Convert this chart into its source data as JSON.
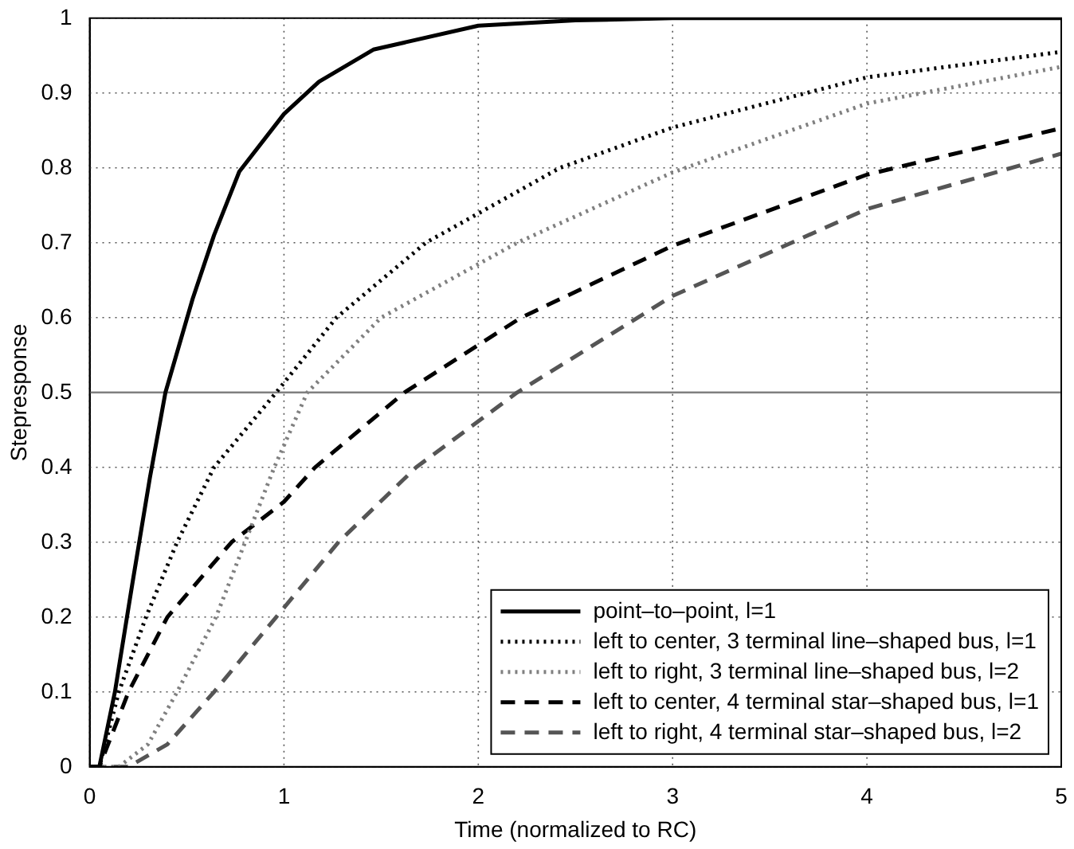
{
  "chart_data": {
    "type": "line",
    "xlabel": "Time (normalized to RC)",
    "ylabel": "Stepresponse",
    "xlim": [
      0,
      5
    ],
    "xticks": [
      0,
      1,
      2,
      3,
      4,
      5
    ],
    "ylim": [
      0,
      1
    ],
    "yticks": [
      0,
      0.1,
      0.2,
      0.3,
      0.4,
      0.5,
      0.6,
      0.7,
      0.8,
      0.9,
      1
    ],
    "grid": true,
    "legend": "bottom right",
    "marker": "none",
    "ref_lines": [
      {
        "axis": "y",
        "value": 0.5,
        "color": "#808080",
        "line_style": "solid"
      }
    ],
    "series": [
      {
        "name": "point–to–point, l=1",
        "color": "#000000",
        "line_style": "solid",
        "x": [
          0,
          0.05,
          0.13,
          0.22,
          0.31,
          0.39,
          0.53,
          0.64,
          0.77,
          1.0,
          1.18,
          1.46,
          2.0,
          2.5,
          3,
          4,
          5
        ],
        "values": [
          0,
          0,
          0.1,
          0.245,
          0.386,
          0.5,
          0.625,
          0.71,
          0.795,
          0.872,
          0.915,
          0.958,
          0.99,
          0.997,
          1,
          1,
          1
        ]
      },
      {
        "name": "left to center, 3 terminal line–shaped bus, l=1",
        "color": "#000000",
        "line_style": "dotted",
        "x": [
          0,
          0.05,
          0.15,
          0.29,
          0.45,
          0.64,
          0.96,
          1.27,
          1.73,
          2.42,
          3,
          4,
          5
        ],
        "values": [
          0,
          0,
          0.1,
          0.2,
          0.3,
          0.4,
          0.5,
          0.6,
          0.7,
          0.8,
          0.854,
          0.921,
          0.955
        ]
      },
      {
        "name": "left to right, 3 terminal line–shaped bus, l=2",
        "color": "#808080",
        "line_style": "dotted",
        "x": [
          0,
          0.15,
          0.3,
          0.45,
          0.65,
          0.8,
          0.95,
          1.12,
          1.5,
          2.2,
          3,
          4,
          5
        ],
        "values": [
          0,
          0,
          0.03,
          0.1,
          0.2,
          0.3,
          0.4,
          0.5,
          0.6,
          0.7,
          0.794,
          0.886,
          0.935
        ]
      },
      {
        "name": "left to center, 4 terminal star–shaped bus, l=1",
        "color": "#000000",
        "line_style": "dashed",
        "x": [
          0,
          0.05,
          0.2,
          0.4,
          0.73,
          1.0,
          1.16,
          1.62,
          2.22,
          3,
          4,
          5
        ],
        "values": [
          0,
          0,
          0.1,
          0.2,
          0.3,
          0.354,
          0.4,
          0.5,
          0.6,
          0.696,
          0.791,
          0.853
        ]
      },
      {
        "name": "left to right, 4 terminal star–shaped bus, l=2",
        "color": "#555555",
        "line_style": "dashed",
        "x": [
          0,
          0.2,
          0.4,
          0.64,
          0.96,
          1.28,
          1.68,
          2.2,
          3,
          4,
          5
        ],
        "values": [
          0,
          0,
          0.03,
          0.1,
          0.2,
          0.3,
          0.4,
          0.5,
          0.629,
          0.745,
          0.819
        ]
      }
    ]
  }
}
